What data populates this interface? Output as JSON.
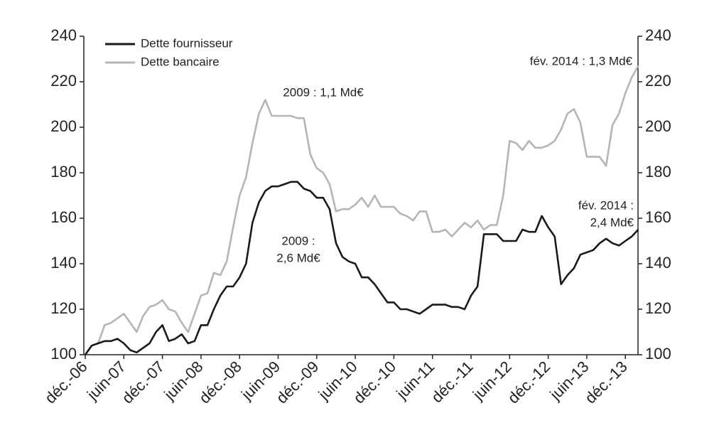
{
  "chart_data": {
    "type": "line",
    "categories": [
      "déc.-06",
      null,
      null,
      null,
      null,
      null,
      "juin-07",
      null,
      null,
      null,
      null,
      null,
      "déc.-07",
      null,
      null,
      null,
      null,
      null,
      "juin-08",
      null,
      null,
      null,
      null,
      null,
      "déc.-08",
      null,
      null,
      null,
      null,
      null,
      "juin-09",
      null,
      null,
      null,
      null,
      null,
      "déc.-09",
      null,
      null,
      null,
      null,
      null,
      "juin-10",
      null,
      null,
      null,
      null,
      null,
      "déc.-10",
      null,
      null,
      null,
      null,
      null,
      "juin-11",
      null,
      null,
      null,
      null,
      null,
      "déc.-11",
      null,
      null,
      null,
      null,
      null,
      "juin-12",
      null,
      null,
      null,
      null,
      null,
      "déc.-12",
      null,
      null,
      null,
      null,
      null,
      "juin-13",
      null,
      null,
      null,
      null,
      null,
      "déc.-13",
      null,
      null
    ],
    "series": [
      {
        "name": "Dette fournisseur",
        "color": "#1a1a1a",
        "values": [
          100,
          104,
          105,
          106,
          106,
          107,
          105,
          102,
          101,
          103,
          105,
          110,
          113,
          106,
          107,
          109,
          105,
          106,
          113,
          113,
          120,
          126,
          130,
          130,
          134,
          140,
          158,
          167,
          172,
          174,
          174,
          175,
          176,
          176,
          173,
          172,
          169,
          169,
          164,
          149,
          143,
          141,
          140,
          134,
          134,
          131,
          127,
          123,
          123,
          120,
          120,
          119,
          118,
          120,
          122,
          122,
          122,
          121,
          121,
          120,
          126,
          130,
          153,
          153,
          153,
          150,
          150,
          150,
          155,
          154,
          154,
          161,
          156,
          152,
          131,
          135,
          138,
          144,
          145,
          146,
          149,
          151,
          149,
          148,
          150,
          152,
          155
        ]
      },
      {
        "name": "Dette bancaire",
        "color": "#b5b5b5",
        "axis": "y2",
        "values": [
          100,
          104,
          105,
          113,
          114,
          116,
          118,
          114,
          110,
          117,
          121,
          122,
          124,
          120,
          119,
          114,
          110,
          118,
          126,
          127,
          136,
          135,
          141,
          156,
          170,
          178,
          193,
          206,
          212,
          205,
          205,
          205,
          205,
          204,
          204,
          188,
          182,
          180,
          175,
          163,
          164,
          164,
          166,
          169,
          165,
          170,
          165,
          165,
          165,
          162,
          161,
          159,
          163,
          163,
          154,
          154,
          155,
          152,
          155,
          158,
          156,
          159,
          155,
          157,
          157,
          170,
          194,
          193,
          190,
          194,
          191,
          191,
          192,
          194,
          199,
          206,
          208,
          202,
          187,
          187,
          187,
          183,
          201,
          206,
          215,
          222,
          227
        ]
      }
    ],
    "ylim": [
      100,
      240
    ],
    "yticks": [
      100,
      120,
      140,
      160,
      180,
      200,
      220,
      240
    ],
    "y2lim": [
      100,
      240
    ],
    "y2ticks": [
      100,
      120,
      140,
      160,
      180,
      200,
      220,
      240
    ],
    "legend": "top-left",
    "annotations": [
      {
        "lines": [
          "2009 : 1,1 Md€"
        ]
      },
      {
        "lines": [
          "2009 :",
          "2,6 Md€"
        ]
      },
      {
        "lines": [
          "fév. 2014 : 1,3 Md€"
        ]
      },
      {
        "lines": [
          "fév. 2014 :",
          "2,4 Md€"
        ]
      }
    ]
  }
}
